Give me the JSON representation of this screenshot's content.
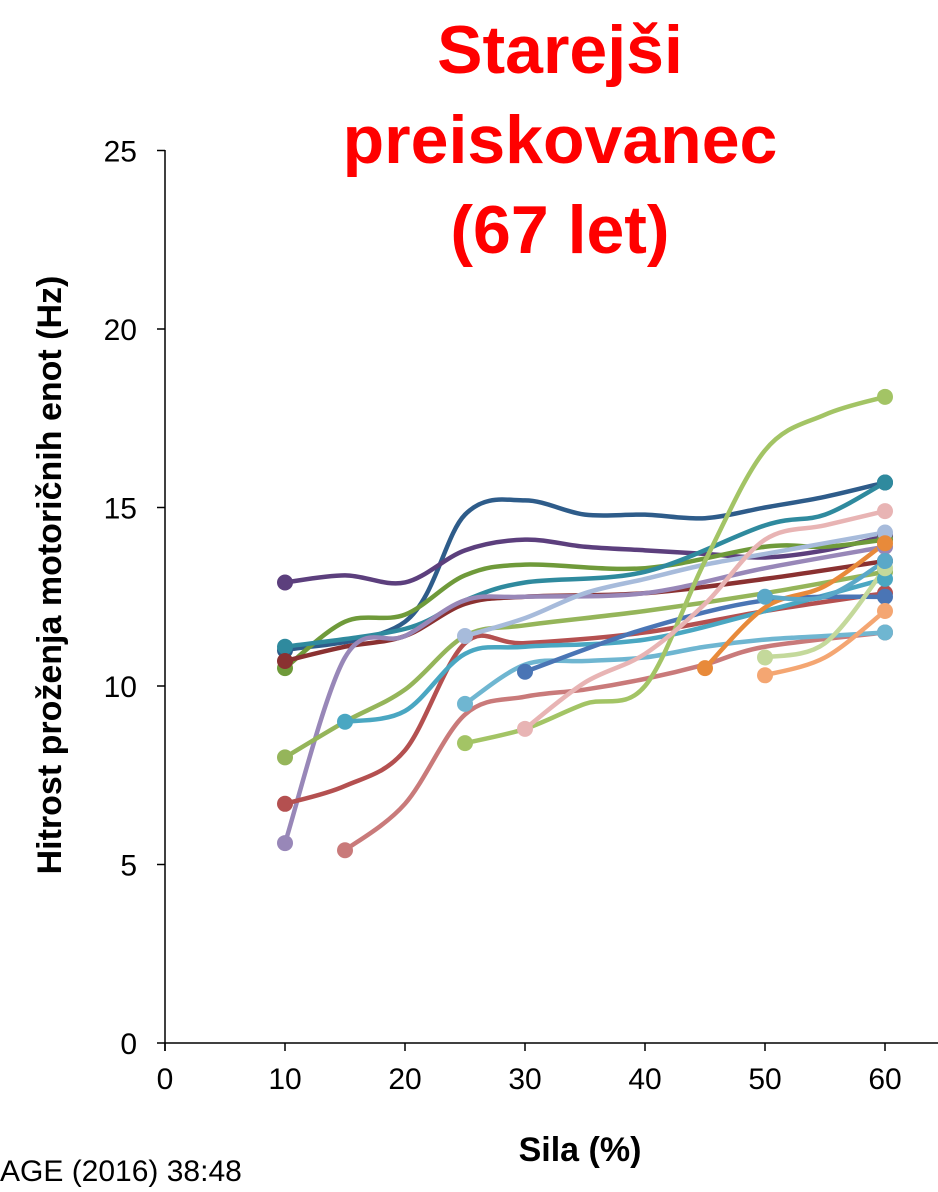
{
  "chart_data": {
    "type": "line",
    "title_lines": [
      "Starejši",
      "preiskovanec",
      "(67 let)"
    ],
    "xlabel": "Sila (%)",
    "ylabel": "Hitrost proženja motoričnih enot  (Hz)",
    "xlim": [
      0,
      65
    ],
    "ylim": [
      0,
      25
    ],
    "xticks": [
      0,
      10,
      20,
      30,
      40,
      50,
      60
    ],
    "yticks": [
      0,
      5,
      10,
      15,
      20,
      25
    ],
    "grid": false,
    "legend": "none",
    "series": [
      {
        "color": "#2e5c8a",
        "x": [
          10,
          20,
          25,
          30,
          35,
          40,
          45,
          50,
          55,
          60
        ],
        "y": [
          11.0,
          11.8,
          14.8,
          15.2,
          14.8,
          14.8,
          14.7,
          15.0,
          15.3,
          15.7
        ]
      },
      {
        "color": "#5c3f7d",
        "x": [
          10,
          15,
          20,
          25,
          30,
          35,
          40,
          45,
          50,
          55,
          60
        ],
        "y": [
          12.9,
          13.1,
          12.9,
          13.8,
          14.1,
          13.9,
          13.8,
          13.7,
          13.6,
          13.8,
          14.2
        ]
      },
      {
        "color": "#6f9a3a",
        "x": [
          10,
          15,
          20,
          25,
          30,
          40,
          50,
          55,
          60
        ],
        "y": [
          10.5,
          11.8,
          12.0,
          13.1,
          13.4,
          13.3,
          13.9,
          13.9,
          14.1
        ]
      },
      {
        "color": "#2f8a9e",
        "x": [
          10,
          20,
          25,
          30,
          40,
          50,
          55,
          60
        ],
        "y": [
          11.1,
          11.6,
          12.4,
          12.9,
          13.2,
          14.5,
          14.8,
          15.7
        ]
      },
      {
        "color": "#8a3131",
        "x": [
          10,
          15,
          20,
          25,
          30,
          40,
          50,
          60
        ],
        "y": [
          10.7,
          11.1,
          11.4,
          12.3,
          12.5,
          12.6,
          13.0,
          13.5
        ]
      },
      {
        "color": "#9887b8",
        "x": [
          10,
          15,
          20,
          25,
          30,
          40,
          50,
          60
        ],
        "y": [
          5.6,
          10.8,
          11.4,
          12.4,
          12.5,
          12.6,
          13.3,
          13.9
        ]
      },
      {
        "color": "#95b55a",
        "x": [
          10,
          15,
          20,
          25,
          30,
          40,
          50,
          60
        ],
        "y": [
          8.0,
          9.0,
          9.9,
          11.4,
          11.7,
          12.1,
          12.6,
          13.2
        ]
      },
      {
        "color": "#b45050",
        "x": [
          10,
          15,
          20,
          25,
          30,
          40,
          50,
          60
        ],
        "y": [
          6.7,
          7.2,
          8.2,
          11.2,
          11.2,
          11.5,
          12.1,
          12.6
        ]
      },
      {
        "color": "#4aa7c2",
        "x": [
          15,
          20,
          25,
          30,
          40,
          50,
          60
        ],
        "y": [
          9.0,
          9.3,
          10.9,
          11.1,
          11.3,
          12.1,
          13.0
        ]
      },
      {
        "color": "#c97a7a",
        "x": [
          15,
          20,
          25,
          30,
          35,
          40,
          45,
          50,
          60
        ],
        "y": [
          5.4,
          6.7,
          9.2,
          9.7,
          9.9,
          10.2,
          10.6,
          11.1,
          11.5
        ]
      },
      {
        "color": "#a7bbdb",
        "x": [
          25,
          30,
          35,
          40,
          45,
          50,
          55,
          60
        ],
        "y": [
          11.4,
          11.9,
          12.6,
          13.0,
          13.4,
          13.7,
          14.0,
          14.3
        ]
      },
      {
        "color": "#6fb6d1",
        "x": [
          25,
          30,
          35,
          40,
          45,
          50,
          55,
          60
        ],
        "y": [
          9.5,
          10.6,
          10.7,
          10.8,
          11.1,
          11.3,
          11.4,
          11.5
        ]
      },
      {
        "color": "#4a75b5",
        "x": [
          30,
          40,
          50,
          60
        ],
        "y": [
          10.4,
          11.6,
          12.4,
          12.5
        ]
      },
      {
        "color": "#a3c465",
        "x": [
          25,
          30,
          35,
          40,
          45,
          50,
          55,
          60
        ],
        "y": [
          8.4,
          8.8,
          9.5,
          10.0,
          13.5,
          16.6,
          17.6,
          18.1
        ]
      },
      {
        "color": "#e8b4b4",
        "x": [
          30,
          35,
          40,
          45,
          50,
          55,
          60
        ],
        "y": [
          8.8,
          10.1,
          10.9,
          12.3,
          14.1,
          14.5,
          14.9
        ]
      },
      {
        "color": "#e88a3a",
        "x": [
          45,
          50,
          55,
          60
        ],
        "y": [
          10.5,
          12.2,
          12.8,
          14.0
        ]
      },
      {
        "color": "#c4d99b",
        "x": [
          50,
          55,
          60
        ],
        "y": [
          10.8,
          11.2,
          13.3
        ]
      },
      {
        "color": "#f4a672",
        "x": [
          50,
          55,
          60
        ],
        "y": [
          10.3,
          10.8,
          12.1
        ]
      },
      {
        "color": "#5aa8c8",
        "x": [
          50,
          55,
          60
        ],
        "y": [
          12.5,
          12.5,
          13.5
        ]
      }
    ]
  },
  "citation": "AGE (2016) 38:48"
}
